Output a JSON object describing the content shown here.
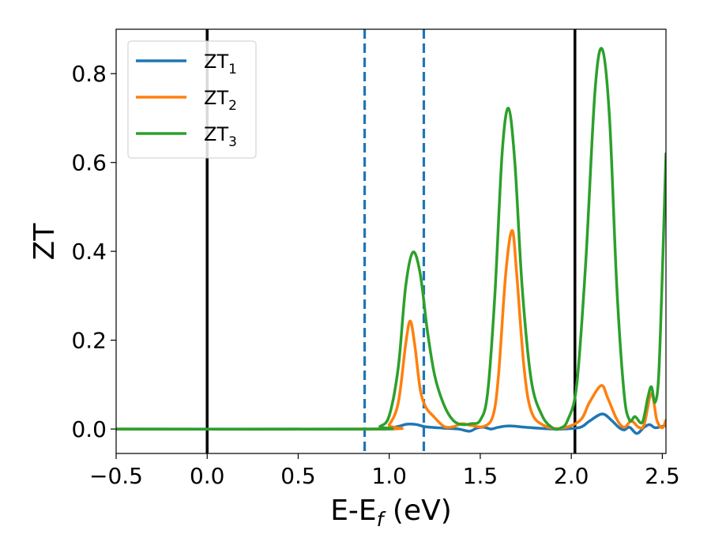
{
  "chart_data": {
    "type": "line",
    "title": "",
    "xlabel": "E-E",
    "xlabel_sub": "f",
    "xlabel_unit": " (eV)",
    "ylabel": "ZT",
    "xlim": [
      -0.5,
      2.52
    ],
    "ylim": [
      -0.055,
      0.9
    ],
    "xticks": [
      -0.5,
      0.0,
      0.5,
      1.0,
      1.5,
      2.0,
      2.5
    ],
    "xtick_labels": [
      "−0.5",
      "0.0",
      "0.5",
      "1.0",
      "1.5",
      "2.0",
      "2.5"
    ],
    "yticks": [
      0.0,
      0.2,
      0.4,
      0.6,
      0.8
    ],
    "ytick_labels": [
      "0.0",
      "0.2",
      "0.4",
      "0.6",
      "0.8"
    ],
    "grid": false,
    "legend_position": "top-left",
    "vlines": [
      {
        "x": 0.0,
        "style": "solid",
        "color": "#000000"
      },
      {
        "x": 2.02,
        "style": "solid",
        "color": "#000000"
      },
      {
        "x": 0.865,
        "style": "dashed",
        "color": "#1f77b4"
      },
      {
        "x": 1.19,
        "style": "dashed",
        "color": "#1f77b4"
      }
    ],
    "series": [
      {
        "name": "ZT",
        "name_sub": "1",
        "color": "#1f77b4",
        "points": [
          [
            -0.5,
            0
          ],
          [
            0.9,
            0
          ],
          [
            1.0,
            0.002
          ],
          [
            1.05,
            0.006
          ],
          [
            1.1,
            0.011
          ],
          [
            1.15,
            0.01
          ],
          [
            1.2,
            0.005
          ],
          [
            1.3,
            0.002
          ],
          [
            1.38,
            0
          ],
          [
            1.44,
            -0.005
          ],
          [
            1.48,
            0.002
          ],
          [
            1.52,
            0.004
          ],
          [
            1.56,
            0
          ],
          [
            1.6,
            0.004
          ],
          [
            1.66,
            0.007
          ],
          [
            1.75,
            0.004
          ],
          [
            1.85,
            0.001
          ],
          [
            1.95,
            0
          ],
          [
            2.05,
            0.004
          ],
          [
            2.1,
            0.018
          ],
          [
            2.17,
            0.034
          ],
          [
            2.22,
            0.02
          ],
          [
            2.26,
            0.004
          ],
          [
            2.29,
            -0.002
          ],
          [
            2.32,
            0.004
          ],
          [
            2.36,
            -0.01
          ],
          [
            2.4,
            0.004
          ],
          [
            2.43,
            0.01
          ],
          [
            2.46,
            0.003
          ],
          [
            2.5,
            0.006
          ],
          [
            2.52,
            0.008
          ]
        ]
      },
      {
        "name": "ZT",
        "name_sub": "2",
        "color": "#ff7f0e",
        "points": [
          [
            -0.5,
            0
          ],
          [
            0.95,
            0
          ],
          [
            1.0,
            0.01
          ],
          [
            1.05,
            0.06
          ],
          [
            1.09,
            0.19
          ],
          [
            1.115,
            0.243
          ],
          [
            1.14,
            0.19
          ],
          [
            1.17,
            0.09
          ],
          [
            1.2,
            0.05
          ],
          [
            1.24,
            0.03
          ],
          [
            1.3,
            0.006
          ],
          [
            1.35,
            0.005
          ],
          [
            1.4,
            0.012
          ],
          [
            1.45,
            0.008
          ],
          [
            1.52,
            0.006
          ],
          [
            1.57,
            0.03
          ],
          [
            1.6,
            0.12
          ],
          [
            1.64,
            0.35
          ],
          [
            1.675,
            0.447
          ],
          [
            1.7,
            0.35
          ],
          [
            1.74,
            0.14
          ],
          [
            1.78,
            0.04
          ],
          [
            1.85,
            0.008
          ],
          [
            1.95,
            0.002
          ],
          [
            2.05,
            0.02
          ],
          [
            2.1,
            0.06
          ],
          [
            2.165,
            0.098
          ],
          [
            2.2,
            0.07
          ],
          [
            2.25,
            0.022
          ],
          [
            2.29,
            0.004
          ],
          [
            2.33,
            0.018
          ],
          [
            2.37,
            0.004
          ],
          [
            2.4,
            0.01
          ],
          [
            2.44,
            0.08
          ],
          [
            2.47,
            0.02
          ],
          [
            2.5,
            0.003
          ],
          [
            2.52,
            0.02
          ]
        ]
      },
      {
        "name": "ZT",
        "name_sub": "3",
        "color": "#2ca02c",
        "points": [
          [
            -0.5,
            0
          ],
          [
            0.9,
            0
          ],
          [
            0.95,
            0.006
          ],
          [
            1.0,
            0.03
          ],
          [
            1.05,
            0.14
          ],
          [
            1.09,
            0.32
          ],
          [
            1.13,
            0.398
          ],
          [
            1.17,
            0.35
          ],
          [
            1.21,
            0.22
          ],
          [
            1.25,
            0.12
          ],
          [
            1.3,
            0.055
          ],
          [
            1.35,
            0.02
          ],
          [
            1.4,
            0.01
          ],
          [
            1.45,
            0.012
          ],
          [
            1.5,
            0.02
          ],
          [
            1.54,
            0.08
          ],
          [
            1.58,
            0.3
          ],
          [
            1.62,
            0.62
          ],
          [
            1.655,
            0.722
          ],
          [
            1.69,
            0.6
          ],
          [
            1.73,
            0.32
          ],
          [
            1.78,
            0.11
          ],
          [
            1.84,
            0.03
          ],
          [
            1.9,
            0.002
          ],
          [
            1.94,
            0.002
          ],
          [
            1.98,
            0.02
          ],
          [
            2.03,
            0.1
          ],
          [
            2.08,
            0.38
          ],
          [
            2.13,
            0.76
          ],
          [
            2.17,
            0.855
          ],
          [
            2.21,
            0.7
          ],
          [
            2.25,
            0.32
          ],
          [
            2.29,
            0.08
          ],
          [
            2.32,
            0.02
          ],
          [
            2.35,
            0.028
          ],
          [
            2.39,
            0.015
          ],
          [
            2.42,
            0.07
          ],
          [
            2.44,
            0.095
          ],
          [
            2.46,
            0.06
          ],
          [
            2.48,
            0.12
          ],
          [
            2.5,
            0.35
          ],
          [
            2.52,
            0.62
          ]
        ]
      }
    ]
  }
}
